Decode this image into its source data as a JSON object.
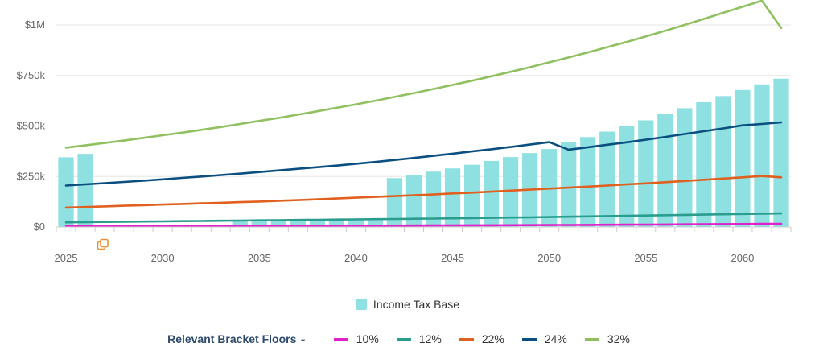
{
  "colors": {
    "bar": "#8fe0e0",
    "grid": "#e6e6e6",
    "axis": "#cccccc",
    "series": [
      "#e020c8",
      "#2a9d8f",
      "#e06020",
      "#0a4f80",
      "#90c060"
    ],
    "toggle": "#2d4a6b",
    "copy_icon": "#e8913a"
  },
  "chart_data": {
    "type": "bar",
    "x": [
      2025,
      2026,
      2027,
      2028,
      2029,
      2030,
      2031,
      2032,
      2033,
      2034,
      2035,
      2036,
      2037,
      2038,
      2039,
      2040,
      2041,
      2042,
      2043,
      2044,
      2045,
      2046,
      2047,
      2048,
      2049,
      2050,
      2051,
      2052,
      2053,
      2054,
      2055,
      2056,
      2057,
      2058,
      2059,
      2060,
      2061,
      2062
    ],
    "bars": {
      "name": "Income Tax Base",
      "values": [
        345000,
        362000,
        0,
        0,
        0,
        0,
        0,
        0,
        0,
        36000,
        38000,
        38000,
        38000,
        38000,
        40000,
        42000,
        44000,
        242000,
        258000,
        274000,
        290000,
        308000,
        327000,
        346000,
        366000,
        386000,
        420000,
        445000,
        472000,
        500000,
        528000,
        558000,
        588000,
        618000,
        648000,
        678000,
        706000,
        734000
      ]
    },
    "series": [
      {
        "name": "10%",
        "values": [
          3000,
          3200,
          3400,
          3600,
          3800,
          4000,
          4200,
          4400,
          4600,
          4800,
          5000,
          5300,
          5500,
          5800,
          6000,
          6300,
          6600,
          6900,
          7200,
          7500,
          7800,
          8200,
          8500,
          8900,
          9300,
          9700,
          10100,
          10500,
          11000,
          11500,
          12000,
          12500,
          13000,
          13600,
          14200,
          14800,
          15400,
          16000
        ]
      },
      {
        "name": "12%",
        "values": [
          23000,
          24000,
          25000,
          26000,
          27000,
          28000,
          29000,
          30000,
          31000,
          32000,
          33000,
          34000,
          35000,
          36000,
          37000,
          38000,
          39000,
          40000,
          41000,
          42000,
          43000,
          44000,
          45500,
          47000,
          48000,
          49500,
          51000,
          52500,
          54000,
          55500,
          57000,
          58500,
          60000,
          61500,
          63000,
          64500,
          66000,
          67500
        ]
      },
      {
        "name": "22%",
        "values": [
          96000,
          99000,
          102000,
          105000,
          108000,
          111000,
          114000,
          117000,
          120000,
          123000,
          126000,
          130000,
          133000,
          137000,
          141000,
          145000,
          149000,
          153000,
          157000,
          161000,
          166000,
          170000,
          175000,
          180000,
          185000,
          190000,
          195000,
          200000,
          205000,
          211000,
          216000,
          222000,
          228000,
          234000,
          240000,
          246000,
          252000,
          246000
        ]
      },
      {
        "name": "24%",
        "values": [
          205000,
          211000,
          217000,
          223000,
          229000,
          236000,
          243000,
          250000,
          257000,
          264000,
          272000,
          280000,
          288000,
          296000,
          304000,
          313000,
          322000,
          332000,
          342000,
          352000,
          363000,
          374000,
          385000,
          396000,
          408000,
          420000,
          383000,
          395000,
          407000,
          419000,
          432000,
          446000,
          460000,
          474000,
          488000,
          503000,
          510000,
          518000
        ]
      },
      {
        "name": "32%",
        "values": [
          393000,
          404000,
          416000,
          428000,
          441000,
          454000,
          467000,
          481000,
          495000,
          510000,
          525000,
          540000,
          556000,
          573000,
          590000,
          607000,
          625000,
          644000,
          663000,
          683000,
          703000,
          724000,
          746000,
          768000,
          791000,
          815000,
          839000,
          864000,
          890000,
          916000,
          943000,
          971000,
          1000000,
          1030000,
          1060000,
          1090000,
          1120000,
          985000
        ]
      }
    ],
    "ylim": [
      0,
      1000000
    ],
    "y_ticks": [
      {
        "value": 0,
        "label": "$0"
      },
      {
        "value": 250000,
        "label": "$250k"
      },
      {
        "value": 500000,
        "label": "$500k"
      },
      {
        "value": 750000,
        "label": "$750k"
      },
      {
        "value": 1000000,
        "label": "$1M"
      }
    ],
    "x_ticks": [
      {
        "value": 2025,
        "label": "2025"
      },
      {
        "value": 2030,
        "label": "2030"
      },
      {
        "value": 2035,
        "label": "2035"
      },
      {
        "value": 2040,
        "label": "2040"
      },
      {
        "value": 2045,
        "label": "2045"
      },
      {
        "value": 2050,
        "label": "2050"
      },
      {
        "value": 2055,
        "label": "2055"
      },
      {
        "value": 2060,
        "label": "2060"
      }
    ],
    "grid": true,
    "legend_position": "bottom"
  },
  "legend": {
    "bar_label": "Income Tax Base",
    "toggle_label": "Relevant Bracket Floors",
    "toggle_chevron": "⌄",
    "lines": [
      "10%",
      "12%",
      "22%",
      "24%",
      "32%"
    ]
  },
  "icons": {
    "copy": "copy-icon"
  }
}
